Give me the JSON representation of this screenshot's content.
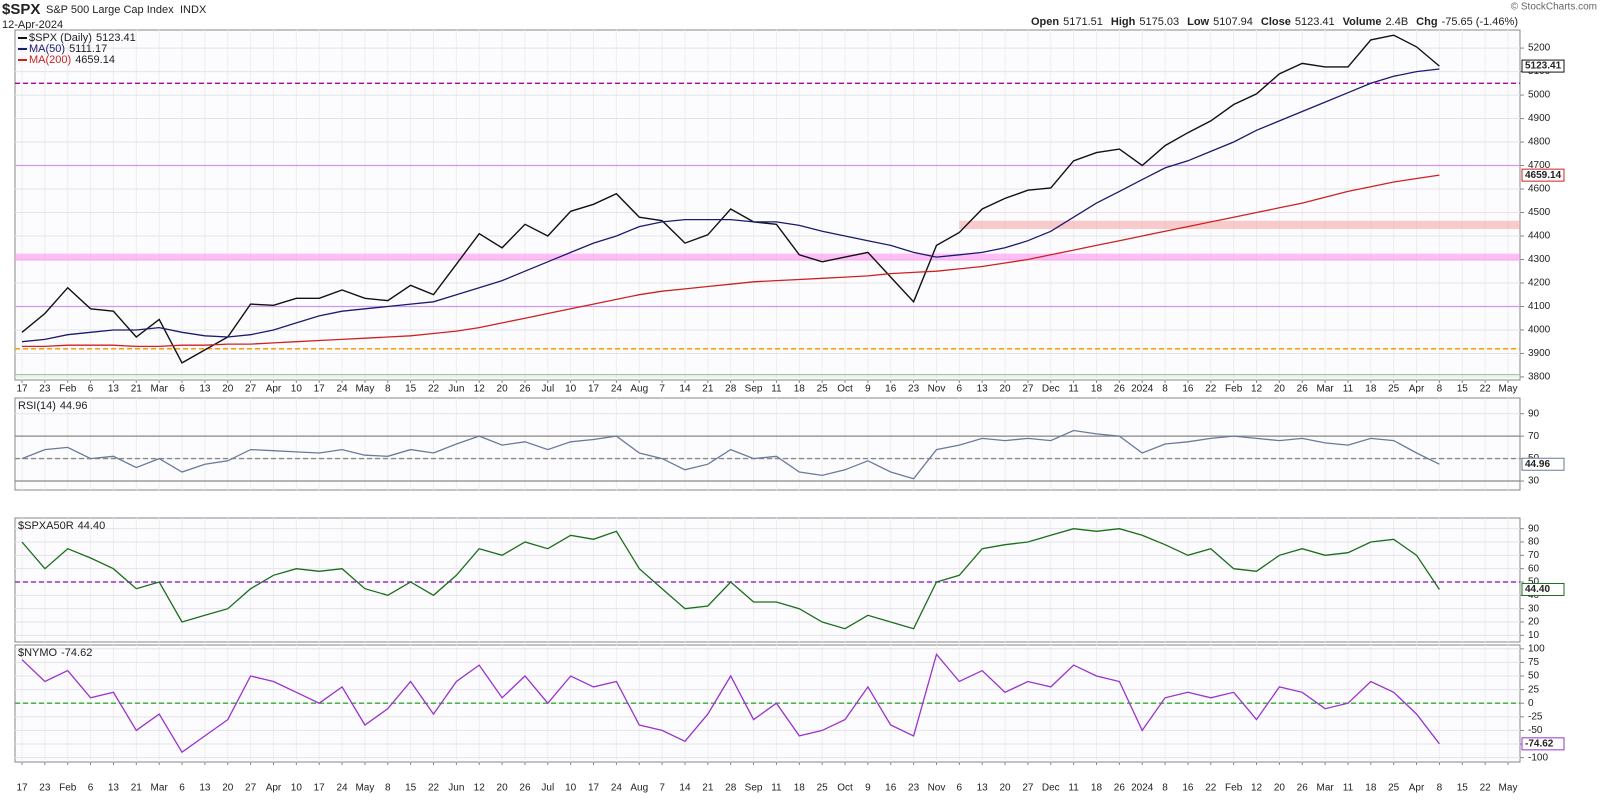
{
  "chart_data": [
    {
      "type": "line",
      "title": "$SPX",
      "subtitle": "S&P 500 Large Cap Index",
      "exchange": "INDX",
      "date": "12-Apr-2024",
      "credit": "© StockCharts.com",
      "quote": [
        {
          "label": "Open",
          "value": 5171.51
        },
        {
          "label": "High",
          "value": 5175.03
        },
        {
          "label": "Low",
          "value": 5107.94
        },
        {
          "label": "Close",
          "value": 5123.41
        },
        {
          "label": "Volume",
          "value": 2400000000,
          "value_label": "2.4B"
        },
        {
          "label": "Chg",
          "value": -75.65,
          "value_label": "-75.65 (-1.46%)"
        }
      ],
      "categories": [
        "17",
        "23",
        "Feb",
        "6",
        "13",
        "21",
        "Mar",
        "6",
        "13",
        "20",
        "27",
        "Apr",
        "10",
        "17",
        "24",
        "May",
        "8",
        "15",
        "22",
        "Jun",
        "12",
        "20",
        "26",
        "Jul",
        "10",
        "17",
        "24",
        "Aug",
        "7",
        "14",
        "21",
        "28",
        "Sep",
        "11",
        "18",
        "25",
        "Oct",
        "9",
        "16",
        "23",
        "Nov",
        "6",
        "13",
        "20",
        "27",
        "Dec",
        "11",
        "18",
        "26",
        "2024",
        "8",
        "16",
        "22",
        "Feb",
        "12",
        "20",
        "26",
        "Mar",
        "11",
        "18",
        "25",
        "Apr",
        "8",
        "15",
        "22",
        "May"
      ],
      "ylim": [
        3787,
        5277
      ],
      "yticks": [
        3800,
        3900,
        4000,
        4100,
        4200,
        4300,
        4400,
        4500,
        4600,
        4700,
        4800,
        4900,
        5000,
        5100,
        5200
      ],
      "series": [
        {
          "name": "$SPX (Daily)",
          "color": "#111111",
          "tag": true,
          "values": [
            3990,
            4070,
            4180,
            4090,
            4080,
            3970,
            4045,
            3860,
            3915,
            3970,
            4110,
            4105,
            4135,
            4135,
            4170,
            4135,
            4125,
            4190,
            4150,
            4280,
            4410,
            4350,
            4450,
            4400,
            4505,
            4535,
            4580,
            4480,
            4465,
            4370,
            4405,
            4515,
            4460,
            4450,
            4320,
            4290,
            4310,
            4330,
            4225,
            4120,
            4360,
            4415,
            4515,
            4560,
            4595,
            4605,
            4720,
            4755,
            4770,
            4700,
            4785,
            4840,
            4890,
            4960,
            5005,
            5090,
            5135,
            5120,
            5120,
            5235,
            5255,
            5205,
            5123.41,
            null,
            null,
            null
          ]
        },
        {
          "name": "MA(50)",
          "color": "#1a1a6e",
          "tag": false,
          "values": [
            3950,
            3960,
            3980,
            3990,
            4000,
            4000,
            4010,
            3990,
            3975,
            3970,
            3980,
            4000,
            4030,
            4060,
            4080,
            4090,
            4100,
            4110,
            4120,
            4150,
            4180,
            4210,
            4250,
            4290,
            4330,
            4370,
            4400,
            4440,
            4460,
            4470,
            4470,
            4470,
            4460,
            4460,
            4445,
            4420,
            4400,
            4380,
            4360,
            4330,
            4310,
            4320,
            4330,
            4350,
            4380,
            4420,
            4480,
            4540,
            4590,
            4640,
            4690,
            4720,
            4760,
            4800,
            4850,
            4890,
            4930,
            4970,
            5010,
            5050,
            5080,
            5100,
            5111.17,
            null,
            null,
            null
          ]
        },
        {
          "name": "MA(200)",
          "color": "#cc2222",
          "tag": true,
          "values": [
            3930,
            3930,
            3935,
            3935,
            3935,
            3930,
            3930,
            3935,
            3935,
            3940,
            3940,
            3945,
            3950,
            3955,
            3960,
            3965,
            3970,
            3975,
            3985,
            3995,
            4010,
            4030,
            4050,
            4070,
            4090,
            4110,
            4130,
            4150,
            4165,
            4175,
            4185,
            4195,
            4205,
            4210,
            4215,
            4220,
            4225,
            4230,
            4240,
            4245,
            4250,
            4260,
            4270,
            4285,
            4300,
            4320,
            4340,
            4360,
            4380,
            4400,
            4420,
            4440,
            4460,
            4480,
            4500,
            4520,
            4540,
            4565,
            4590,
            4610,
            4630,
            4645,
            4659.14,
            null,
            null,
            null
          ]
        }
      ],
      "zones": [
        {
          "from": 4295,
          "to": 4325,
          "color": "#ff88ee"
        },
        {
          "from": 4430,
          "to": 4465,
          "color": "#f6a0a0"
        }
      ],
      "levels": [
        {
          "value": 5050,
          "color": "#aa00aa",
          "dashed": true
        },
        {
          "value": 4700,
          "color": "#cc99ee",
          "dashed": false
        },
        {
          "value": 4100,
          "color": "#cc99ee",
          "dashed": false
        },
        {
          "value": 3920,
          "color": "#ff9900",
          "dashed": true
        },
        {
          "value": 3810,
          "color": "#99cc99",
          "dashed": false
        }
      ]
    },
    {
      "type": "line",
      "ylim": [
        22,
        104
      ],
      "yticks": [
        30,
        50,
        70,
        90
      ],
      "series": [
        {
          "name": "RSI(14)",
          "color": "#6a7a9a",
          "tag": true,
          "values": [
            50,
            58,
            60,
            50,
            52,
            42,
            50,
            38,
            45,
            48,
            58,
            57,
            56,
            55,
            58,
            53,
            52,
            58,
            55,
            63,
            70,
            62,
            65,
            58,
            65,
            67,
            70,
            55,
            50,
            40,
            45,
            58,
            50,
            52,
            38,
            35,
            40,
            48,
            38,
            32,
            58,
            62,
            68,
            66,
            68,
            66,
            75,
            72,
            70,
            55,
            63,
            65,
            68,
            70,
            68,
            66,
            68,
            64,
            62,
            68,
            66,
            55,
            44.96,
            null,
            null,
            null
          ]
        }
      ],
      "levels": [
        {
          "value": 70,
          "color": "#888888",
          "dashed": false
        },
        {
          "value": 50,
          "color": "#888888",
          "dashed": true
        },
        {
          "value": 30,
          "color": "#888888",
          "dashed": false
        }
      ]
    },
    {
      "type": "line",
      "ylim": [
        5,
        98
      ],
      "yticks": [
        10,
        20,
        30,
        40,
        50,
        60,
        70,
        80,
        90
      ],
      "series": [
        {
          "name": "$SPXA50R",
          "color": "#1a6e1a",
          "tag": true,
          "values": [
            80,
            60,
            75,
            68,
            60,
            45,
            50,
            20,
            25,
            30,
            45,
            55,
            60,
            58,
            60,
            45,
            40,
            50,
            40,
            55,
            75,
            70,
            80,
            75,
            85,
            82,
            88,
            60,
            45,
            30,
            32,
            50,
            35,
            35,
            30,
            20,
            15,
            25,
            20,
            15,
            50,
            55,
            75,
            78,
            80,
            85,
            90,
            88,
            90,
            85,
            78,
            70,
            75,
            60,
            58,
            70,
            75,
            70,
            72,
            80,
            82,
            70,
            44.4,
            null,
            null,
            null
          ],
          "value_labels": [
            null,
            null,
            null,
            null,
            null,
            null,
            null,
            null,
            null,
            null,
            null,
            null,
            null,
            null,
            null,
            null,
            null,
            null,
            null,
            null,
            null,
            null,
            null,
            null,
            null,
            null,
            null,
            null,
            null,
            null,
            null,
            null,
            null,
            null,
            null,
            null,
            null,
            null,
            null,
            null,
            null,
            null,
            null,
            null,
            null,
            null,
            null,
            null,
            null,
            null,
            null,
            null,
            null,
            null,
            null,
            null,
            null,
            null,
            null,
            null,
            null,
            null,
            "44.40",
            null,
            null,
            null
          ]
        }
      ],
      "levels": [
        {
          "value": 50,
          "color": "#9933cc",
          "dashed": true
        }
      ]
    },
    {
      "type": "line",
      "ylim": [
        -108,
        107
      ],
      "yticks": [
        100,
        75,
        50,
        25,
        0,
        -25,
        -50,
        -75,
        -100
      ],
      "categories": [
        "17",
        "23",
        "Feb",
        "6",
        "13",
        "21",
        "Mar",
        "6",
        "13",
        "20",
        "27",
        "Apr",
        "10",
        "17",
        "24",
        "May",
        "8",
        "15",
        "22",
        "Jun",
        "12",
        "20",
        "26",
        "Jul",
        "10",
        "17",
        "24",
        "Aug",
        "7",
        "14",
        "21",
        "28",
        "Sep",
        "11",
        "18",
        "25",
        "Oct",
        "9",
        "16",
        "23",
        "Nov",
        "6",
        "13",
        "20",
        "27",
        "Dec",
        "11",
        "18",
        "26",
        "2024",
        "8",
        "16",
        "22",
        "Feb",
        "12",
        "20",
        "26",
        "Mar",
        "11",
        "18",
        "25",
        "Apr",
        "8",
        "15",
        "22",
        "May"
      ],
      "series": [
        {
          "name": "$NYMO",
          "color": "#9933cc",
          "tag": true,
          "values": [
            80,
            40,
            60,
            10,
            20,
            -50,
            -20,
            -90,
            -60,
            -30,
            50,
            40,
            20,
            0,
            30,
            -40,
            -10,
            40,
            -20,
            40,
            70,
            10,
            50,
            0,
            50,
            30,
            40,
            -40,
            -50,
            -70,
            -20,
            50,
            -30,
            0,
            -60,
            -50,
            -30,
            30,
            -40,
            -60,
            90,
            40,
            60,
            20,
            40,
            30,
            70,
            50,
            40,
            -50,
            10,
            20,
            10,
            20,
            -30,
            30,
            20,
            -10,
            0,
            40,
            20,
            -20,
            -74.62,
            null,
            null,
            null
          ]
        }
      ],
      "levels": [
        {
          "value": 0,
          "color": "#33aa33",
          "dashed": true
        }
      ]
    }
  ]
}
